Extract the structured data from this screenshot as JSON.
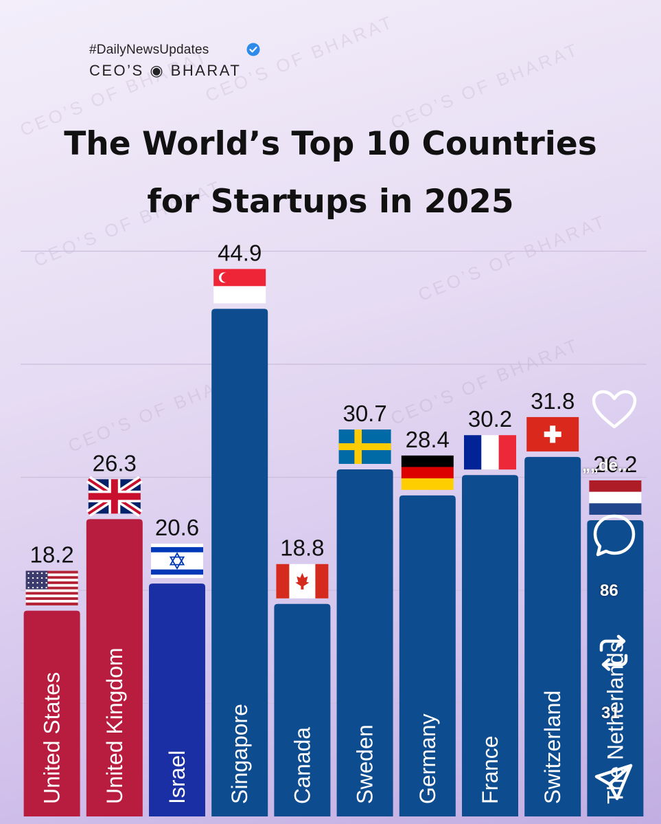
{
  "header": {
    "hashtag": "#DailyNewsUpdates",
    "brand": "CEO’S ◉ BHARAT",
    "watermark_text": "CEO’S OF BHARAT"
  },
  "title_line1": "The World’s Top 10 Countries",
  "title_line2": "for Startups in 2025",
  "colors": {
    "red": "#b81d3f",
    "royal_blue": "#1a2fa3",
    "navy_blue": "#0e4c90",
    "grid": "#c9bedb",
    "label_text": "#ffffff"
  },
  "chart_data": {
    "type": "bar",
    "title": "The World’s Top 10 Countries for Startups in 2025",
    "xlabel": "",
    "ylabel": "",
    "ylim": [
      0,
      50
    ],
    "grid": true,
    "categories": [
      "United States",
      "United Kingdom",
      "Israel",
      "Singapore",
      "Canada",
      "Sweden",
      "Germany",
      "France",
      "Switzerland",
      "The Netherlands"
    ],
    "values": [
      18.2,
      26.3,
      20.6,
      44.9,
      18.8,
      30.7,
      28.4,
      30.2,
      31.8,
      26.2
    ],
    "value_labels": [
      "18.2",
      "26.3",
      "20.6",
      "44.9",
      "18.8",
      "30.7",
      "28.4",
      "30.2",
      "31.8",
      "26.2"
    ],
    "bar_color_keys": [
      "red",
      "red",
      "royal_blue",
      "navy_blue",
      "navy_blue",
      "navy_blue",
      "navy_blue",
      "navy_blue",
      "navy_blue",
      "navy_blue"
    ],
    "flags": [
      "us",
      "uk",
      "il",
      "sg",
      "ca",
      "se",
      "de",
      "fr",
      "ch",
      "nl"
    ]
  },
  "overlay": {
    "comment_count": "86",
    "share_count": "31",
    "caption_preview": "„„de..."
  }
}
